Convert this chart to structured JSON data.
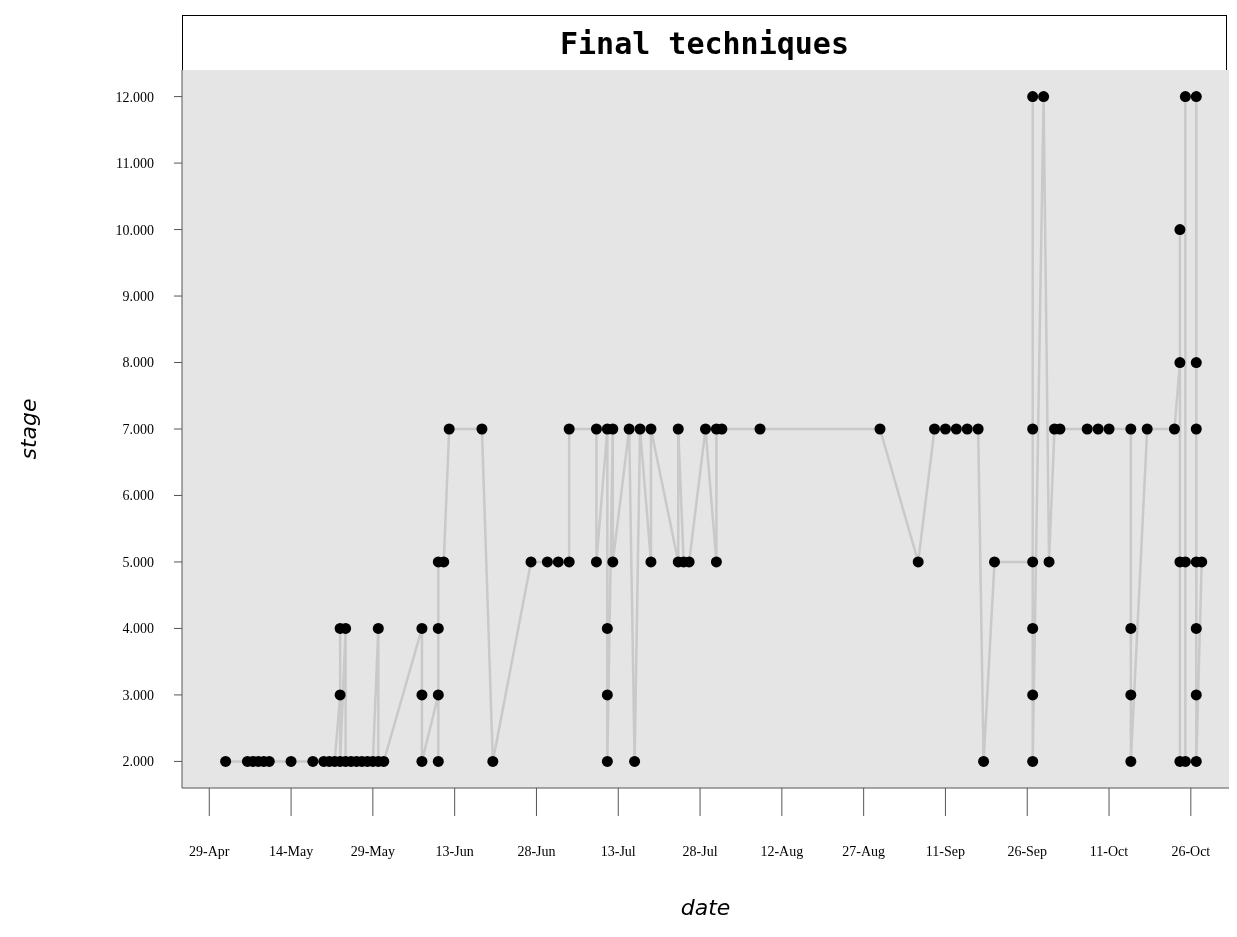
{
  "chart_data": {
    "type": "line",
    "title": "Final techniques",
    "xlabel": "date",
    "ylabel": "stage",
    "marker": "circle",
    "line_style": "solid",
    "grid": false,
    "xlim": [
      "--04-24",
      "--11-02"
    ],
    "xticks": [
      {
        "value": "--04-29",
        "label": "29-Apr"
      },
      {
        "value": "--05-14",
        "label": "14-May"
      },
      {
        "value": "--05-29",
        "label": "29-May"
      },
      {
        "value": "--06-13",
        "label": "13-Jun"
      },
      {
        "value": "--06-28",
        "label": "28-Jun"
      },
      {
        "value": "--07-13",
        "label": "13-Jul"
      },
      {
        "value": "--07-28",
        "label": "28-Jul"
      },
      {
        "value": "--08-12",
        "label": "12-Aug"
      },
      {
        "value": "--08-27",
        "label": "27-Aug"
      },
      {
        "value": "--09-11",
        "label": "11-Sep"
      },
      {
        "value": "--09-26",
        "label": "26-Sep"
      },
      {
        "value": "--10-11",
        "label": "11-Oct"
      },
      {
        "value": "--10-26",
        "label": "26-Oct"
      }
    ],
    "ylim": [
      1.6,
      12.4
    ],
    "yticks": [
      {
        "value": 2,
        "label": "2.000"
      },
      {
        "value": 3,
        "label": "3.000"
      },
      {
        "value": 4,
        "label": "4.000"
      },
      {
        "value": 5,
        "label": "5.000"
      },
      {
        "value": 6,
        "label": "6.000"
      },
      {
        "value": 7,
        "label": "7.000"
      },
      {
        "value": 8,
        "label": "8.000"
      },
      {
        "value": 9,
        "label": "9.000"
      },
      {
        "value": 10,
        "label": "10.000"
      },
      {
        "value": 11,
        "label": "11.000"
      },
      {
        "value": 12,
        "label": "12.000"
      }
    ],
    "series": [
      {
        "color": "#000000",
        "x": [
          "--05-02",
          "--05-06",
          "--05-07",
          "--05-08",
          "--05-09",
          "--05-10",
          "--05-14",
          "--05-18",
          "--05-20",
          "--05-21",
          "--05-22",
          "--05-23",
          "--05-23",
          "--05-23",
          "--05-24",
          "--05-24",
          "--05-25",
          "--05-26",
          "--05-27",
          "--05-28",
          "--05-29",
          "--05-30",
          "--05-30",
          "--05-31",
          "--06-07",
          "--06-07",
          "--06-07",
          "--06-10",
          "--06-10",
          "--06-10",
          "--06-10",
          "--06-11",
          "--06-12",
          "--06-18",
          "--06-20",
          "--06-27",
          "--06-30",
          "--07-02",
          "--07-04",
          "--07-04",
          "--07-09",
          "--07-09",
          "--07-11",
          "--07-11",
          "--07-11",
          "--07-11",
          "--07-12",
          "--07-12",
          "--07-15",
          "--07-16",
          "--07-17",
          "--07-19",
          "--07-19",
          "--07-24",
          "--07-24",
          "--07-25",
          "--07-26",
          "--07-29",
          "--07-31",
          "--07-31",
          "--08-01",
          "--08-08",
          "--08-30",
          "--09-06",
          "--09-09",
          "--09-11",
          "--09-13",
          "--09-15",
          "--09-17",
          "--09-18",
          "--09-20",
          "--09-27",
          "--09-27",
          "--09-27",
          "--09-27",
          "--09-27",
          "--09-27",
          "--09-29",
          "--09-30",
          "--10-01",
          "--10-02",
          "--10-07",
          "--10-09",
          "--10-11",
          "--10-15",
          "--10-15",
          "--10-15",
          "--10-15",
          "--10-18",
          "--10-23",
          "--10-24",
          "--10-24",
          "--10-24",
          "--10-24",
          "--10-25",
          "--10-25",
          "--10-25",
          "--10-27",
          "--10-27",
          "--10-27",
          "--10-27",
          "--10-27",
          "--10-27",
          "--10-27",
          "--10-28"
        ],
        "values": [
          2,
          2,
          2,
          2,
          2,
          2,
          2,
          2,
          2,
          2,
          2,
          3,
          4,
          2,
          4,
          2,
          2,
          2,
          2,
          2,
          2,
          4,
          2,
          2,
          4,
          3,
          2,
          3,
          4,
          2,
          5,
          5,
          7,
          7,
          2,
          5,
          5,
          5,
          5,
          7,
          7,
          5,
          7,
          4,
          3,
          2,
          7,
          5,
          7,
          2,
          7,
          5,
          7,
          5,
          7,
          5,
          5,
          7,
          5,
          7,
          7,
          7,
          7,
          5,
          7,
          7,
          7,
          7,
          7,
          2,
          5,
          5,
          12,
          7,
          4,
          3,
          2,
          12,
          5,
          7,
          7,
          7,
          7,
          7,
          7,
          4,
          3,
          2,
          7,
          7,
          8,
          10,
          5,
          2,
          2,
          5,
          12,
          12,
          8,
          7,
          5,
          4,
          3,
          2,
          5
        ]
      }
    ]
  }
}
